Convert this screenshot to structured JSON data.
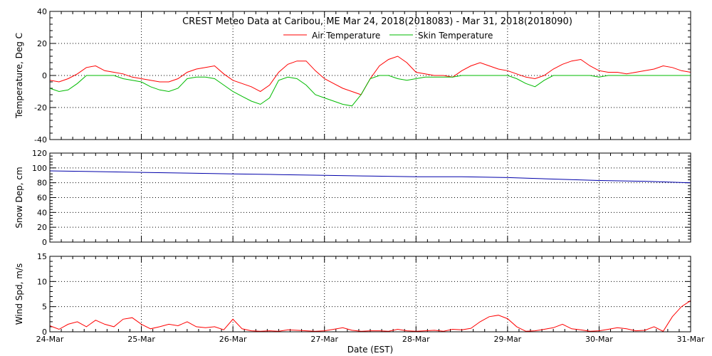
{
  "chart_data": {
    "type": "line",
    "title": "CREST Meteo Data at Caribou, ME   Mar 24, 2018(2018083) - Mar 31, 2018(2018090)",
    "xlabel": "Date (EST)",
    "xlim": [
      0,
      7
    ],
    "x_ticks": [
      0,
      1,
      2,
      3,
      4,
      5,
      6,
      7
    ],
    "x_tick_labels": [
      "24-Mar",
      "25-Mar",
      "26-Mar",
      "27-Mar",
      "28-Mar",
      "29-Mar",
      "30-Mar",
      "31-Mar"
    ],
    "x_units": "days since 24-Mar 00:00 EST",
    "grid": true,
    "legend_placement": "top-center",
    "panels": [
      {
        "ylabel": "Temperature, Deg C",
        "ylim": [
          -40,
          40
        ],
        "y_ticks": [
          -40,
          -20,
          0,
          20,
          40
        ],
        "series": [
          {
            "name": "Air Temperature",
            "color": "#ff0000",
            "x": [
              0,
              0.1,
              0.2,
              0.3,
              0.4,
              0.5,
              0.6,
              0.7,
              0.8,
              0.9,
              1.0,
              1.1,
              1.2,
              1.3,
              1.4,
              1.5,
              1.6,
              1.7,
              1.8,
              1.9,
              2.0,
              2.1,
              2.2,
              2.3,
              2.4,
              2.5,
              2.6,
              2.7,
              2.8,
              2.9,
              3.0,
              3.1,
              3.2,
              3.3,
              3.4,
              3.5,
              3.6,
              3.7,
              3.8,
              3.9,
              4.0,
              4.1,
              4.2,
              4.3,
              4.4,
              4.5,
              4.6,
              4.7,
              4.8,
              4.9,
              5.0,
              5.1,
              5.2,
              5.3,
              5.4,
              5.5,
              5.6,
              5.7,
              5.8,
              5.9,
              6.0,
              6.1,
              6.2,
              6.3,
              6.4,
              6.5,
              6.6,
              6.7,
              6.8,
              6.9,
              7.0
            ],
            "values": [
              -3,
              -4,
              -2,
              1,
              5,
              6,
              3,
              2,
              1,
              -1,
              -2,
              -3,
              -4,
              -4,
              -2,
              2,
              4,
              5,
              6,
              1,
              -3,
              -5,
              -7,
              -10,
              -6,
              2,
              7,
              9,
              9,
              3,
              -2,
              -5,
              -8,
              -10,
              -12,
              -2,
              6,
              10,
              12,
              8,
              2,
              1,
              0,
              0,
              -1,
              3,
              6,
              8,
              6,
              4,
              3,
              1,
              -1,
              -2,
              0,
              4,
              7,
              9,
              10,
              6,
              3,
              2,
              2,
              1,
              2,
              3,
              4,
              6,
              5,
              3,
              2
            ]
          },
          {
            "name": "Skin Temperature",
            "color": "#00bb00",
            "x": [
              0,
              0.1,
              0.2,
              0.3,
              0.4,
              0.5,
              0.6,
              0.7,
              0.8,
              0.9,
              1.0,
              1.1,
              1.2,
              1.3,
              1.4,
              1.5,
              1.6,
              1.7,
              1.8,
              1.9,
              2.0,
              2.1,
              2.2,
              2.3,
              2.4,
              2.5,
              2.6,
              2.7,
              2.8,
              2.9,
              3.0,
              3.1,
              3.2,
              3.3,
              3.4,
              3.5,
              3.6,
              3.7,
              3.8,
              3.9,
              4.0,
              4.1,
              4.2,
              4.3,
              4.4,
              4.5,
              4.6,
              4.7,
              4.8,
              4.9,
              5.0,
              5.1,
              5.2,
              5.3,
              5.4,
              5.5,
              5.6,
              5.7,
              5.8,
              5.9,
              6.0,
              6.1,
              6.2,
              6.3,
              6.4,
              6.5,
              6.6,
              6.7,
              6.8,
              6.9,
              7.0
            ],
            "values": [
              -8,
              -10,
              -9,
              -5,
              0,
              0,
              0,
              0,
              -2,
              -3,
              -4,
              -7,
              -9,
              -10,
              -8,
              -2,
              -1,
              -1,
              -2,
              -6,
              -10,
              -13,
              -16,
              -18,
              -14,
              -3,
              -1,
              -2,
              -6,
              -12,
              -14,
              -16,
              -18,
              -19,
              -12,
              -2,
              0,
              0,
              -2,
              -3,
              -2,
              -1,
              -1,
              -1,
              -1,
              0,
              0,
              0,
              0,
              0,
              0,
              -2,
              -5,
              -7,
              -3,
              0,
              0,
              0,
              0,
              0,
              -1,
              0,
              0,
              0,
              0,
              0,
              0,
              0,
              0,
              0,
              0
            ]
          }
        ]
      },
      {
        "ylabel": "Snow Dep, cm",
        "ylim": [
          0,
          120
        ],
        "y_ticks": [
          0,
          20,
          40,
          60,
          80,
          100,
          120
        ],
        "series": [
          {
            "name": "",
            "color": "#0000aa",
            "x": [
              0,
              0.5,
              1.0,
              1.5,
              2.0,
              2.5,
              3.0,
              3.5,
              4.0,
              4.5,
              5.0,
              5.5,
              6.0,
              6.5,
              7.0
            ],
            "values": [
              96,
              95,
              94,
              93,
              92,
              91,
              90,
              89,
              88,
              88,
              87,
              85,
              83,
              82,
              80
            ]
          }
        ]
      },
      {
        "ylabel": "Wind Spd, m/s",
        "ylim": [
          0,
          15
        ],
        "y_ticks": [
          0,
          5,
          10,
          15
        ],
        "series": [
          {
            "name": "",
            "color": "#ff0000",
            "x": [
              0,
              0.1,
              0.2,
              0.3,
              0.4,
              0.5,
              0.6,
              0.7,
              0.8,
              0.9,
              1.0,
              1.1,
              1.2,
              1.3,
              1.4,
              1.5,
              1.6,
              1.7,
              1.8,
              1.9,
              2.0,
              2.1,
              2.2,
              2.3,
              2.4,
              2.5,
              2.6,
              2.7,
              2.8,
              2.9,
              3.0,
              3.1,
              3.2,
              3.3,
              3.4,
              3.5,
              3.6,
              3.7,
              3.8,
              3.9,
              4.0,
              4.1,
              4.2,
              4.3,
              4.4,
              4.5,
              4.6,
              4.7,
              4.8,
              4.9,
              5.0,
              5.1,
              5.2,
              5.3,
              5.4,
              5.5,
              5.6,
              5.7,
              5.8,
              5.9,
              6.0,
              6.1,
              6.2,
              6.3,
              6.4,
              6.5,
              6.6,
              6.7,
              6.8,
              6.9,
              7.0
            ],
            "values": [
              1.2,
              0.5,
              1.5,
              2.0,
              1.0,
              2.3,
              1.5,
              1.0,
              2.5,
              2.8,
              1.5,
              0.6,
              1.0,
              1.5,
              1.2,
              2.0,
              1.0,
              0.8,
              1.0,
              0.4,
              2.5,
              0.6,
              0.2,
              0.1,
              0.2,
              0.1,
              0.4,
              0.3,
              0.2,
              0.1,
              0.2,
              0.5,
              0.8,
              0.3,
              0.1,
              0.2,
              0.2,
              0.1,
              0.5,
              0.2,
              0.1,
              0.2,
              0.3,
              0.1,
              0.5,
              0.4,
              0.7,
              2.0,
              3.0,
              3.3,
              2.6,
              1.0,
              0.1,
              0.2,
              0.5,
              0.8,
              1.5,
              0.6,
              0.4,
              0.1,
              0.2,
              0.5,
              0.8,
              0.6,
              0.2,
              0.3,
              1.0,
              0.1,
              3.0,
              5.0,
              6.2
            ]
          }
        ]
      }
    ]
  }
}
